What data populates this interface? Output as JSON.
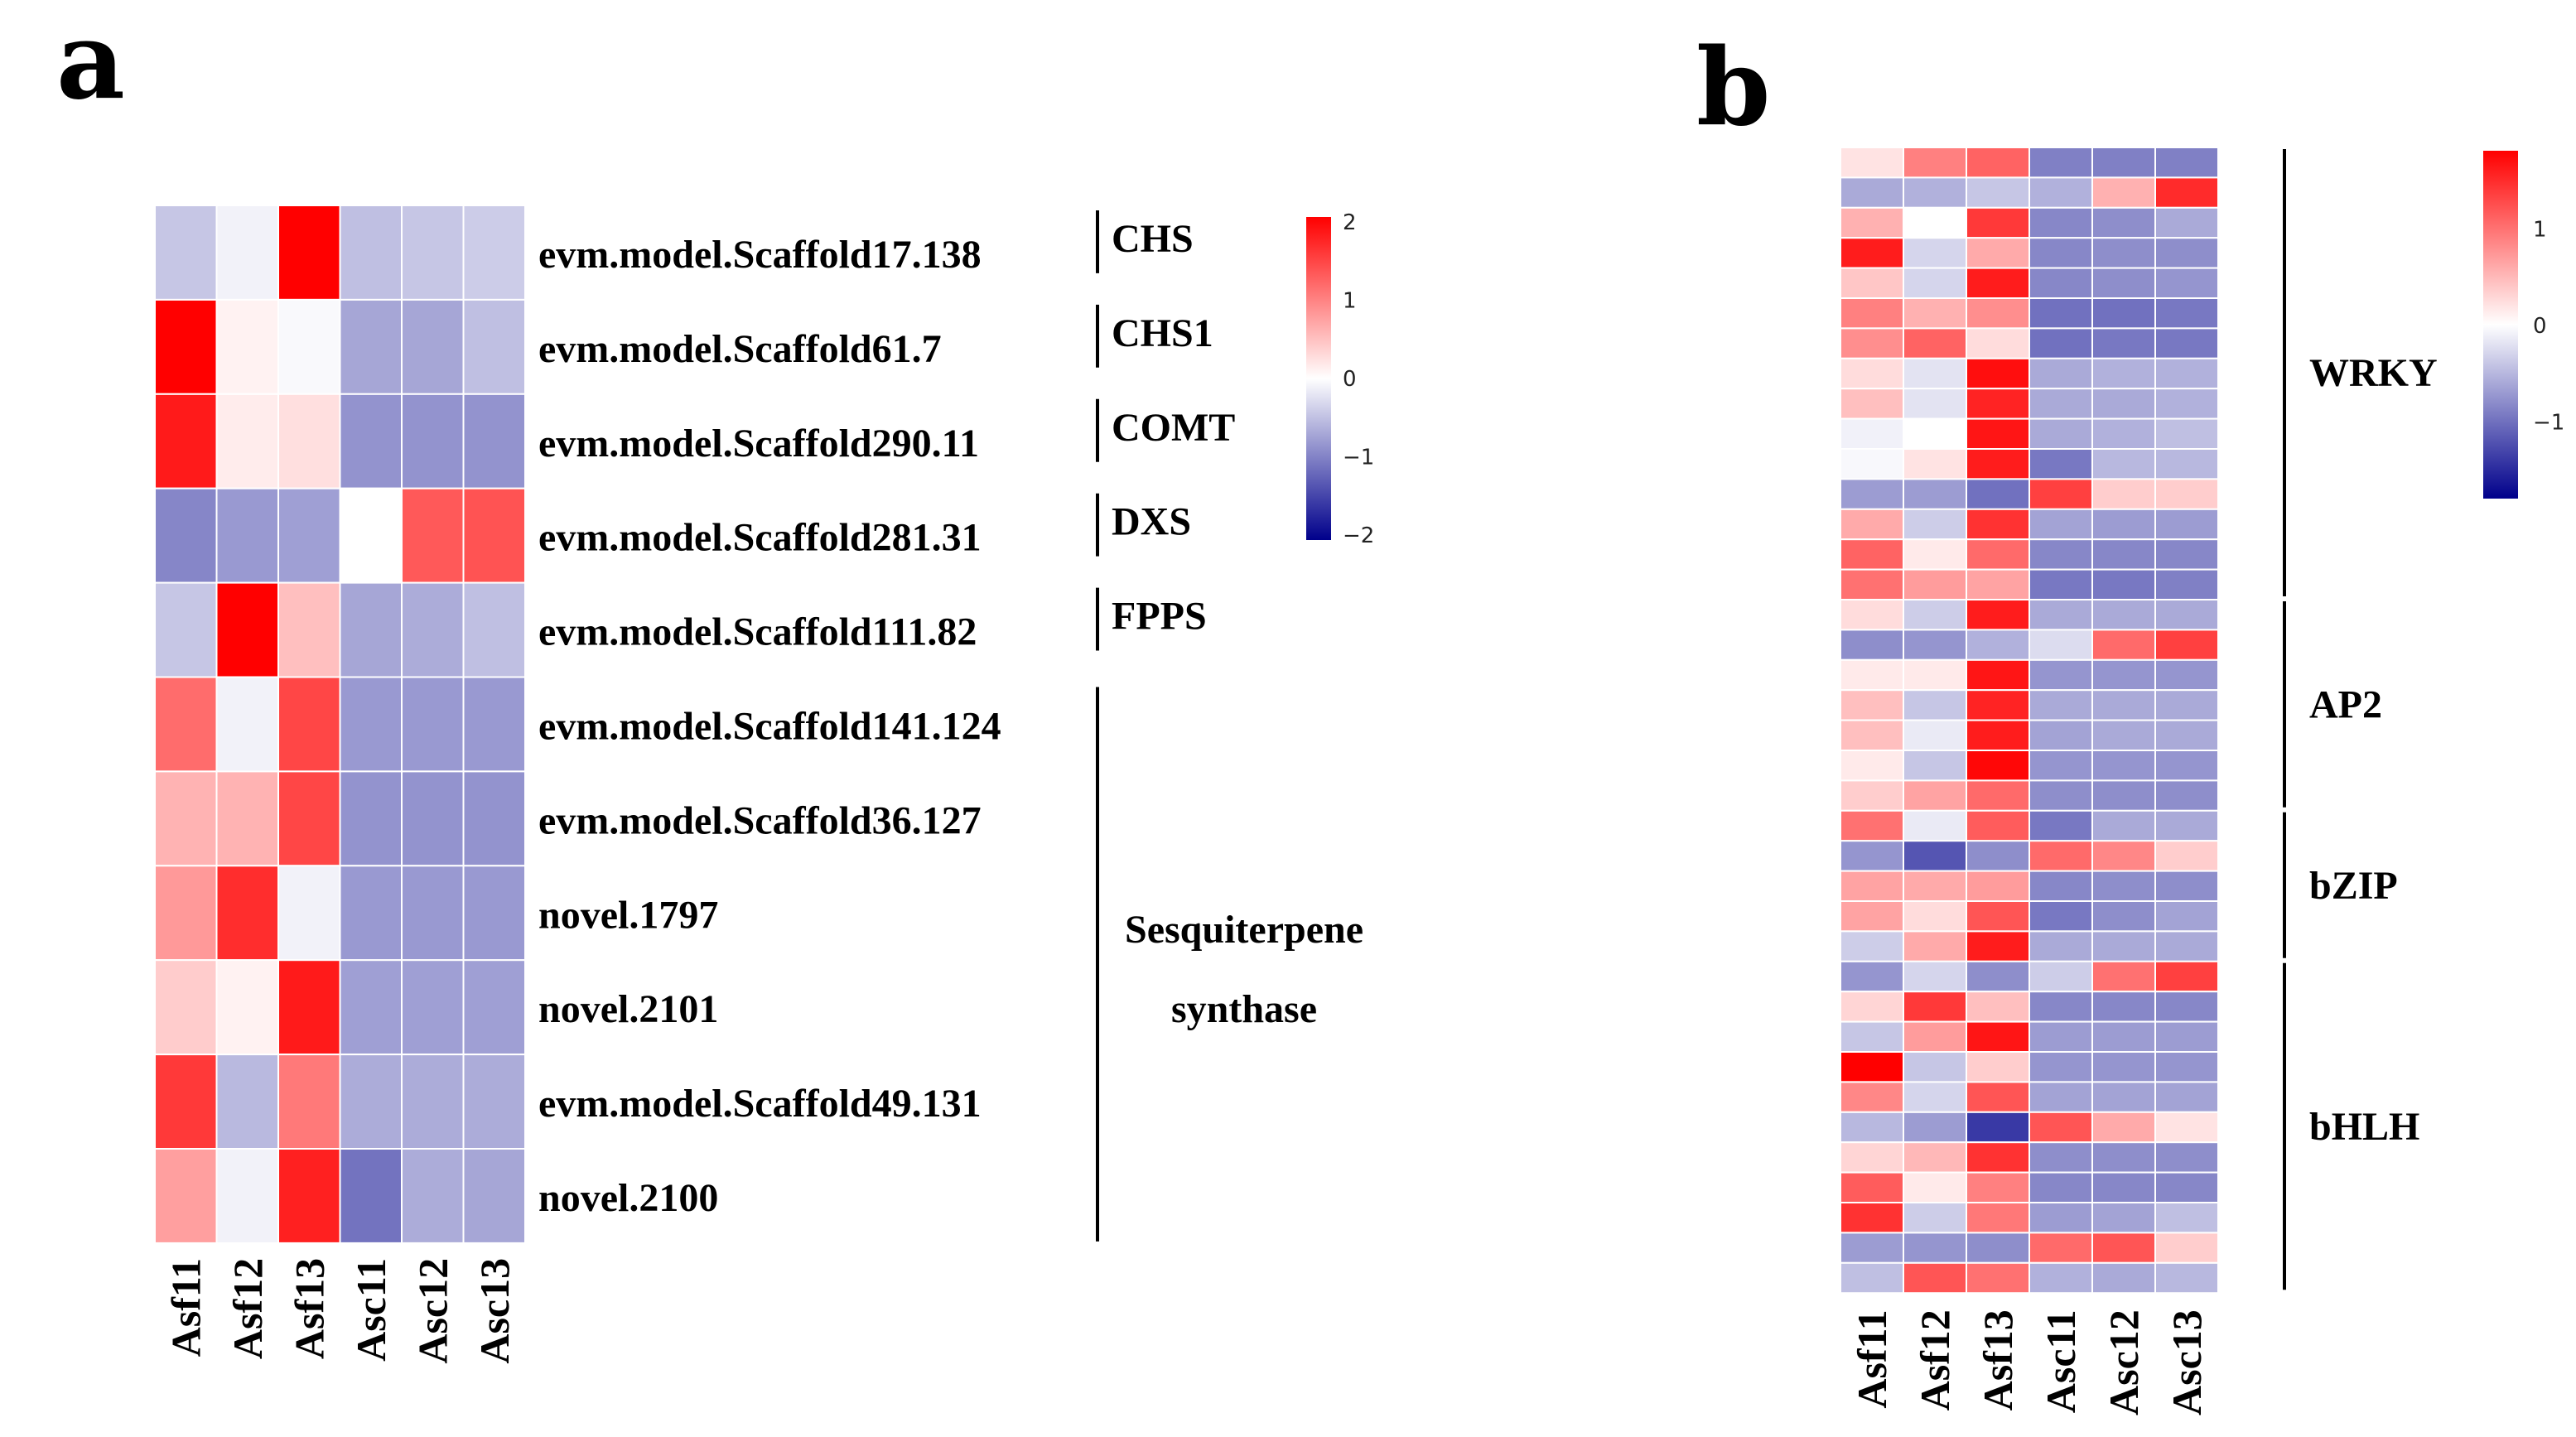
{
  "panels": {
    "a": "a",
    "b": "b"
  },
  "colors": {
    "low": "#00008B",
    "mid": "#FFFFFF",
    "high": "#FF0000"
  },
  "chart_data": [
    {
      "type": "heatmap",
      "panel": "a",
      "columns": [
        "Asf11",
        "Asf12",
        "Asf13",
        "Asc11",
        "Asc12",
        "Asc13"
      ],
      "rows": [
        "evm.model.Scaffold17.138",
        "evm.model.Scaffold61.7",
        "evm.model.Scaffold290.11",
        "evm.model.Scaffold281.31",
        "evm.model.Scaffold111.82",
        "evm.model.Scaffold141.124",
        "evm.model.Scaffold36.127",
        "novel.1797",
        "novel.2101",
        "evm.model.Scaffold49.131",
        "novel.2100"
      ],
      "values": [
        [
          -0.45,
          -0.1,
          2.0,
          -0.5,
          -0.45,
          -0.4
        ],
        [
          2.0,
          0.1,
          -0.05,
          -0.7,
          -0.7,
          -0.5
        ],
        [
          1.8,
          0.15,
          0.25,
          -0.85,
          -0.85,
          -0.85
        ],
        [
          -0.95,
          -0.8,
          -0.75,
          0.0,
          1.3,
          1.35
        ],
        [
          -0.45,
          2.0,
          0.5,
          -0.7,
          -0.65,
          -0.5
        ],
        [
          1.15,
          -0.1,
          1.45,
          -0.8,
          -0.8,
          -0.8
        ],
        [
          0.6,
          0.6,
          1.45,
          -0.85,
          -0.85,
          -0.85
        ],
        [
          0.8,
          1.65,
          -0.1,
          -0.8,
          -0.8,
          -0.8
        ],
        [
          0.4,
          0.1,
          1.8,
          -0.75,
          -0.75,
          -0.75
        ],
        [
          1.55,
          -0.55,
          1.05,
          -0.65,
          -0.65,
          -0.65
        ],
        [
          0.75,
          -0.1,
          1.75,
          -1.1,
          -0.65,
          -0.7
        ]
      ],
      "groups": [
        {
          "label": [
            "CHS"
          ],
          "start": 0,
          "end": 0
        },
        {
          "label": [
            "CHS1"
          ],
          "start": 1,
          "end": 1
        },
        {
          "label": [
            "COMT"
          ],
          "start": 2,
          "end": 2
        },
        {
          "label": [
            "DXS"
          ],
          "start": 3,
          "end": 3
        },
        {
          "label": [
            "FPPS"
          ],
          "start": 4,
          "end": 4
        },
        {
          "label": [
            "Sesquiterpene",
            "synthase"
          ],
          "start": 5,
          "end": 10
        }
      ],
      "colorbar": {
        "min": -2,
        "max": 2,
        "ticks": [
          "2",
          "1",
          "0",
          "−1",
          "−2"
        ]
      }
    },
    {
      "type": "heatmap",
      "panel": "b",
      "columns": [
        "Asf11",
        "Asf12",
        "Asf13",
        "Asc11",
        "Asc12",
        "Asc13"
      ],
      "values": [
        [
          0.2,
          0.9,
          1.1,
          -0.9,
          -0.9,
          -0.9
        ],
        [
          -0.6,
          -0.55,
          -0.4,
          -0.55,
          0.55,
          1.5
        ],
        [
          0.55,
          0.0,
          1.4,
          -0.85,
          -0.8,
          -0.6
        ],
        [
          1.6,
          -0.3,
          0.6,
          -0.85,
          -0.8,
          -0.8
        ],
        [
          0.4,
          -0.3,
          1.6,
          -0.85,
          -0.8,
          -0.75
        ],
        [
          0.9,
          0.55,
          0.8,
          -1.0,
          -1.0,
          -0.95
        ],
        [
          0.8,
          1.1,
          0.25,
          -1.0,
          -0.95,
          -0.95
        ],
        [
          0.25,
          -0.2,
          1.7,
          -0.6,
          -0.55,
          -0.55
        ],
        [
          0.45,
          -0.2,
          1.55,
          -0.6,
          -0.6,
          -0.55
        ],
        [
          -0.1,
          0.0,
          1.65,
          -0.6,
          -0.55,
          -0.45
        ],
        [
          -0.05,
          0.2,
          1.6,
          -0.95,
          -0.5,
          -0.5
        ],
        [
          -0.7,
          -0.7,
          -1.0,
          1.35,
          0.35,
          0.35
        ],
        [
          0.6,
          -0.35,
          1.45,
          -0.65,
          -0.7,
          -0.7
        ],
        [
          1.1,
          0.15,
          1.05,
          -0.85,
          -0.85,
          -0.85
        ],
        [
          1.0,
          0.7,
          0.65,
          -0.95,
          -0.95,
          -0.9
        ],
        [
          0.25,
          -0.35,
          1.6,
          -0.6,
          -0.6,
          -0.6
        ],
        [
          -0.8,
          -0.75,
          -0.55,
          -0.25,
          1.05,
          1.35
        ],
        [
          0.15,
          0.15,
          1.65,
          -0.75,
          -0.75,
          -0.75
        ],
        [
          0.45,
          -0.4,
          1.55,
          -0.6,
          -0.6,
          -0.6
        ],
        [
          0.45,
          -0.15,
          1.6,
          -0.65,
          -0.6,
          -0.6
        ],
        [
          0.15,
          -0.4,
          1.75,
          -0.75,
          -0.75,
          -0.75
        ],
        [
          0.35,
          0.65,
          1.05,
          -0.8,
          -0.8,
          -0.8
        ],
        [
          1.0,
          -0.15,
          1.15,
          -0.95,
          -0.6,
          -0.6
        ],
        [
          -0.75,
          -1.2,
          -0.8,
          1.05,
          0.85,
          0.35
        ],
        [
          0.65,
          0.6,
          0.7,
          -0.85,
          -0.8,
          -0.8
        ],
        [
          0.65,
          0.25,
          1.2,
          -0.95,
          -0.8,
          -0.65
        ],
        [
          -0.35,
          0.6,
          1.6,
          -0.6,
          -0.6,
          -0.6
        ],
        [
          -0.75,
          -0.3,
          -0.8,
          -0.35,
          1.0,
          1.35
        ],
        [
          0.3,
          1.4,
          0.45,
          -0.85,
          -0.85,
          -0.85
        ],
        [
          -0.4,
          0.7,
          1.65,
          -0.7,
          -0.7,
          -0.7
        ],
        [
          1.8,
          -0.4,
          0.35,
          -0.75,
          -0.75,
          -0.75
        ],
        [
          0.85,
          -0.3,
          1.2,
          -0.65,
          -0.65,
          -0.65
        ],
        [
          -0.5,
          -0.7,
          -1.4,
          1.2,
          0.6,
          0.2
        ],
        [
          0.3,
          0.5,
          1.45,
          -0.8,
          -0.8,
          -0.8
        ],
        [
          1.15,
          0.15,
          0.9,
          -0.85,
          -0.85,
          -0.85
        ],
        [
          1.45,
          -0.35,
          0.95,
          -0.7,
          -0.65,
          -0.45
        ],
        [
          -0.7,
          -0.75,
          -0.8,
          1.05,
          1.2,
          0.35
        ],
        [
          -0.45,
          1.2,
          1.0,
          -0.55,
          -0.6,
          -0.5
        ]
      ],
      "groups": [
        {
          "label": [
            "WRKY"
          ],
          "start": 0,
          "end": 14
        },
        {
          "label": [
            "AP2"
          ],
          "start": 15,
          "end": 21
        },
        {
          "label": [
            "bZIP"
          ],
          "start": 22,
          "end": 26
        },
        {
          "label": [
            "bHLH"
          ],
          "start": 27,
          "end": 37
        }
      ],
      "colorbar": {
        "min": -1.8,
        "max": 1.8,
        "ticks": [
          "1",
          "0",
          "−1"
        ],
        "tick_values": [
          1,
          0,
          -1
        ]
      }
    }
  ]
}
